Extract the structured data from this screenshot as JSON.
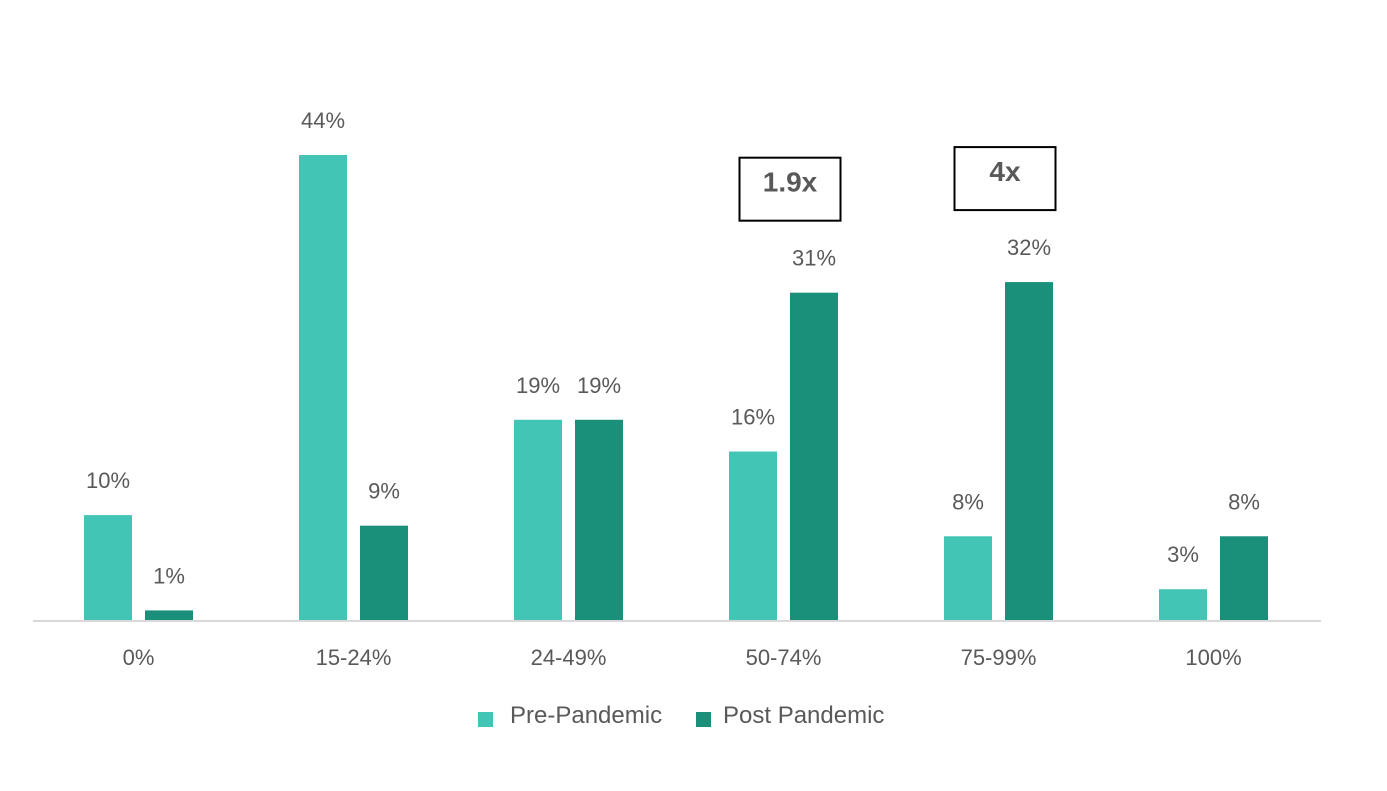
{
  "chart_data": {
    "type": "bar",
    "categories": [
      "0%",
      "15-24%",
      "24-49%",
      "50-74%",
      "75-99%",
      "100%"
    ],
    "series": [
      {
        "name": "Pre-Pandemic",
        "color": "#42c5b5",
        "values": [
          10,
          44,
          19,
          16,
          8,
          3
        ],
        "labels": [
          "10%",
          "44%",
          "19%",
          "16%",
          "8%",
          "3%"
        ]
      },
      {
        "name": "Post Pandemic",
        "color": "#1a8f7a",
        "values": [
          1,
          9,
          19,
          31,
          32,
          8
        ],
        "labels": [
          "1%",
          "9%",
          "19%",
          "31%",
          "32%",
          "8%"
        ]
      }
    ],
    "annotations": [
      {
        "category": "50-74%",
        "text": "1.9x"
      },
      {
        "category": "75-99%",
        "text": "4x"
      }
    ],
    "ylim": [
      0,
      44
    ],
    "grid": false,
    "legend_position": "bottom"
  }
}
